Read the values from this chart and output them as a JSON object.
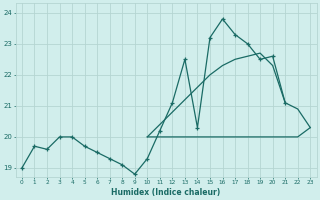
{
  "xlabel": "Humidex (Indice chaleur)",
  "bg_color": "#d1eeec",
  "grid_color": "#b5d5d2",
  "line_color": "#1a6b65",
  "x_hours": [
    0,
    1,
    2,
    3,
    4,
    5,
    6,
    7,
    8,
    9,
    10,
    11,
    12,
    13,
    14,
    15,
    16,
    17,
    18,
    19,
    20,
    21,
    22,
    23
  ],
  "line1": [
    19.0,
    19.7,
    19.6,
    20.0,
    20.0,
    19.7,
    19.5,
    19.3,
    19.1,
    18.8,
    19.3,
    20.2,
    21.1,
    22.5,
    20.3,
    23.2,
    23.8,
    23.3,
    23.0,
    22.5,
    22.6,
    21.1,
    null,
    null
  ],
  "line2": [
    19.0,
    null,
    null,
    null,
    null,
    null,
    null,
    null,
    null,
    null,
    20.0,
    20.0,
    20.0,
    20.0,
    20.0,
    20.0,
    20.0,
    20.0,
    20.0,
    20.0,
    20.0,
    20.0,
    20.0,
    20.3
  ],
  "line3": [
    19.0,
    null,
    null,
    null,
    null,
    null,
    null,
    null,
    null,
    null,
    20.0,
    20.4,
    20.8,
    21.2,
    21.6,
    22.0,
    22.3,
    22.5,
    22.6,
    22.7,
    22.3,
    21.1,
    20.9,
    20.3
  ],
  "ylim": [
    18.7,
    24.3
  ],
  "yticks": [
    19,
    20,
    21,
    22,
    23,
    24
  ],
  "xticks": [
    0,
    1,
    2,
    3,
    4,
    5,
    6,
    7,
    8,
    9,
    10,
    11,
    12,
    13,
    14,
    15,
    16,
    17,
    18,
    19,
    20,
    21,
    22,
    23
  ]
}
